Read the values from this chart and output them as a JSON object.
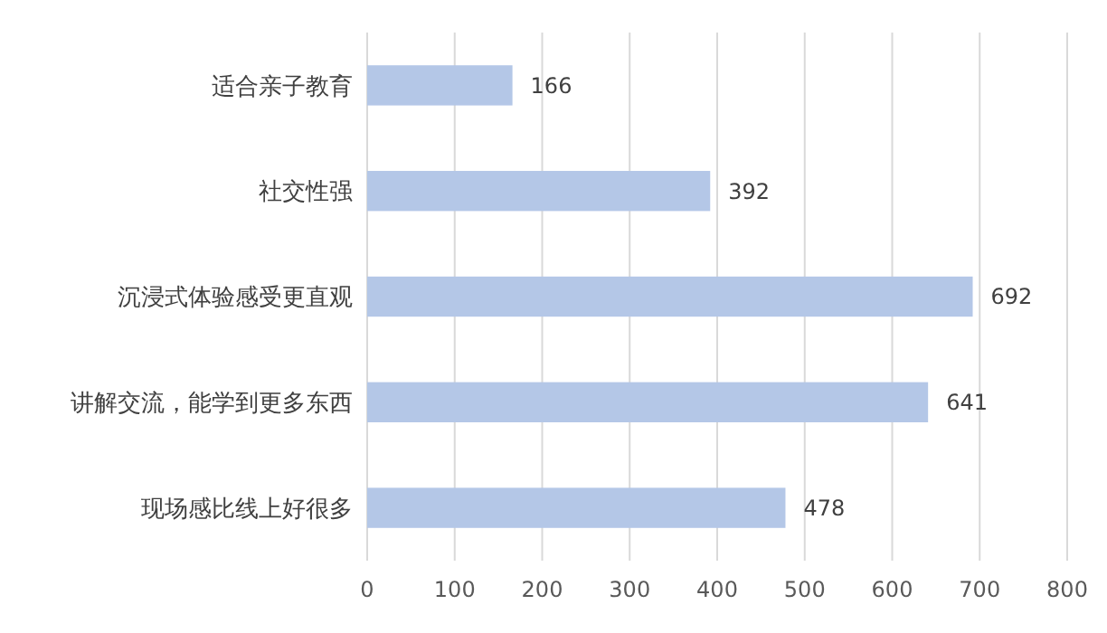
{
  "chart_data": {
    "type": "bar",
    "orientation": "horizontal",
    "categories": [
      "适合亲子教育",
      "社交性强",
      "沉浸式体验感受更直观",
      "讲解交流，能学到更多东西",
      "现场感比线上好很多"
    ],
    "values": [
      166,
      392,
      692,
      641,
      478
    ],
    "color": "#b4c7e7",
    "xlim": [
      0,
      800
    ],
    "xticks": [
      0,
      100,
      200,
      300,
      400,
      500,
      600,
      700,
      800
    ],
    "grid": "x",
    "data_labels": true
  }
}
